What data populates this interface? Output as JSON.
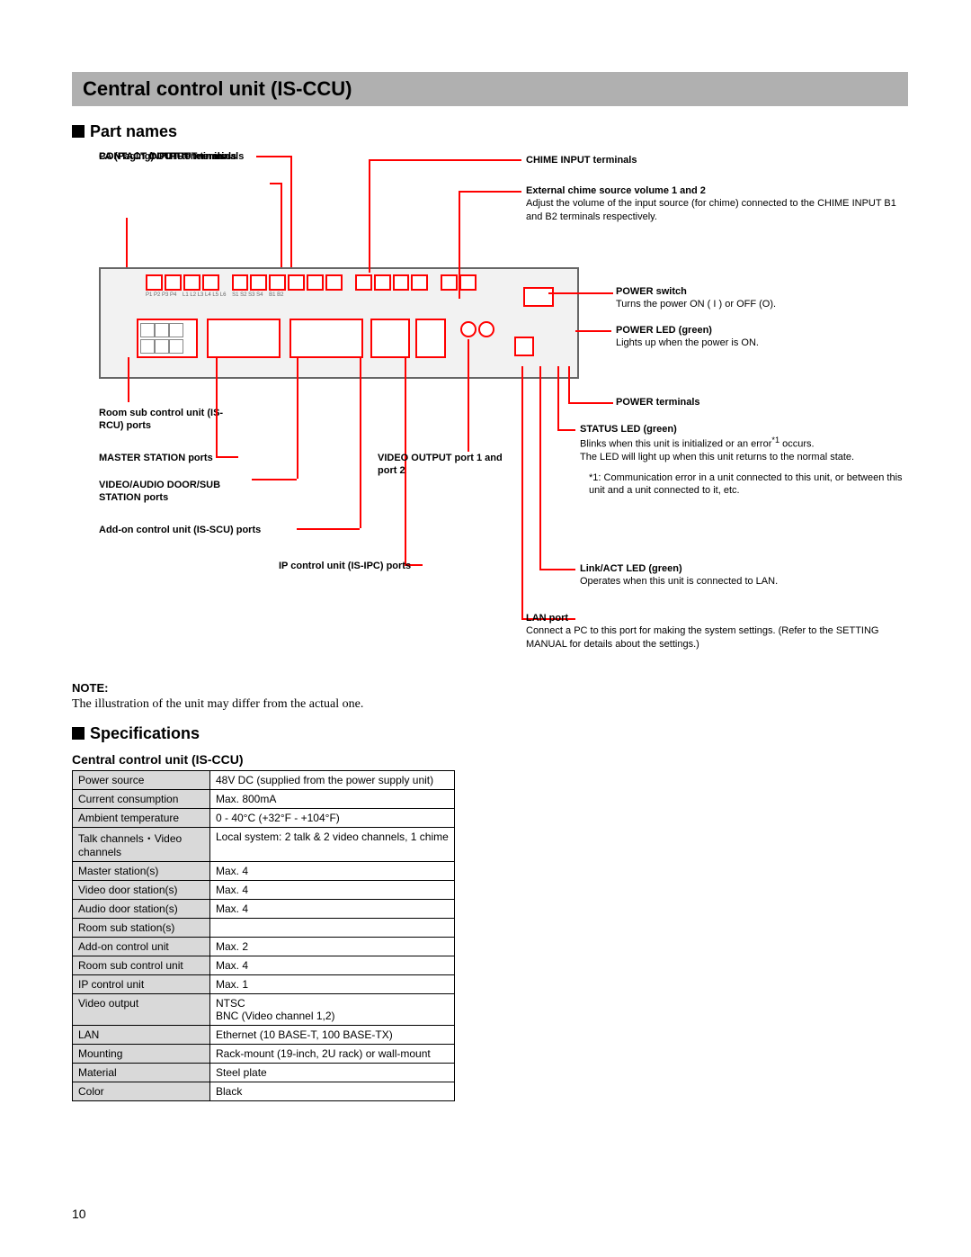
{
  "title": "Central control unit (IS-CCU)",
  "sections": {
    "part_names": "Part names",
    "specs": "Specifications"
  },
  "spec_title": "Central control unit (IS-CCU)",
  "page_num": "10",
  "note_h": "NOTE:",
  "note_t": "The illustration of the unit may differ from the actual one.",
  "left_labels": {
    "contact_in": "CONTACT INPUT terminals",
    "contact_out": "CONTACT OUTPUT terminals",
    "pa": "PA (Paging) OUTPUT terminals",
    "rcu": "Room sub control unit (IS-RCU) ports",
    "master": "MASTER STATION ports",
    "door": "VIDEO/AUDIO DOOR/SUB STATION ports",
    "scu": "Add-on control unit (IS-SCU) ports",
    "ipc": "IP control unit (IS-IPC) ports",
    "video": "VIDEO OUTPUT port 1 and port 2"
  },
  "right_labels": {
    "chime": "CHIME INPUT terminals",
    "ext_vol": "External chime source volume 1 and 2",
    "ext_vol_d": "Adjust the volume of the input source (for chime) connected to the CHIME INPUT B1 and B2 terminals respectively.",
    "power_sw": "POWER switch",
    "power_sw_d": "Turns the power ON ( I ) or OFF (O).",
    "power_led": "POWER LED (green)",
    "power_led_d": "Lights up when the power is ON.",
    "power_term": "POWER terminals",
    "status": "STATUS LED (green)",
    "status_d1": "Blinks when this unit is initialized or an error",
    "status_sup": "*1",
    "status_d2": "occurs.",
    "status_d3": "The LED will light up when this unit returns to the normal state.",
    "status_note": "*1: Communication error in a unit connected to this unit, or between this unit and a unit connected to it, etc.",
    "link": "Link/ACT LED (green)",
    "link_d": "Operates when this unit is connected to LAN.",
    "lan": "LAN port",
    "lan_d": "Connect a PC to this port for making the system settings. (Refer to the SETTING MANUAL for details about the settings.)"
  },
  "spec_rows": [
    [
      "Power source",
      "48V DC (supplied from the power supply unit)"
    ],
    [
      "Current consumption",
      "Max. 800mA"
    ],
    [
      "Ambient temperature",
      "0 - 40°C (+32°F - +104°F)"
    ],
    [
      "Talk channels・Video channels",
      "Local system: 2 talk & 2 video channels, 1 chime"
    ],
    [
      "Master station(s)",
      "Max. 4"
    ],
    [
      "Video door station(s)",
      "Max. 4"
    ],
    [
      "Audio door station(s)",
      "Max. 4"
    ],
    [
      "Room sub station(s)",
      ""
    ],
    [
      "Add-on control unit",
      "Max. 2"
    ],
    [
      "Room sub control unit",
      "Max. 4"
    ],
    [
      "IP control unit",
      "Max. 1"
    ],
    [
      "Video output",
      "NTSC\nBNC (Video channel 1,2)"
    ],
    [
      "LAN",
      "Ethernet (10 BASE-T, 100 BASE-TX)"
    ],
    [
      "Mounting",
      "Rack-mount (19-inch, 2U rack) or wall-mount"
    ],
    [
      "Material",
      "Steel plate"
    ],
    [
      "Color",
      "Black"
    ]
  ],
  "colors": {
    "leader": "#ff0000",
    "panel_border": "#666",
    "panel_bg": "#f2f2f2"
  }
}
